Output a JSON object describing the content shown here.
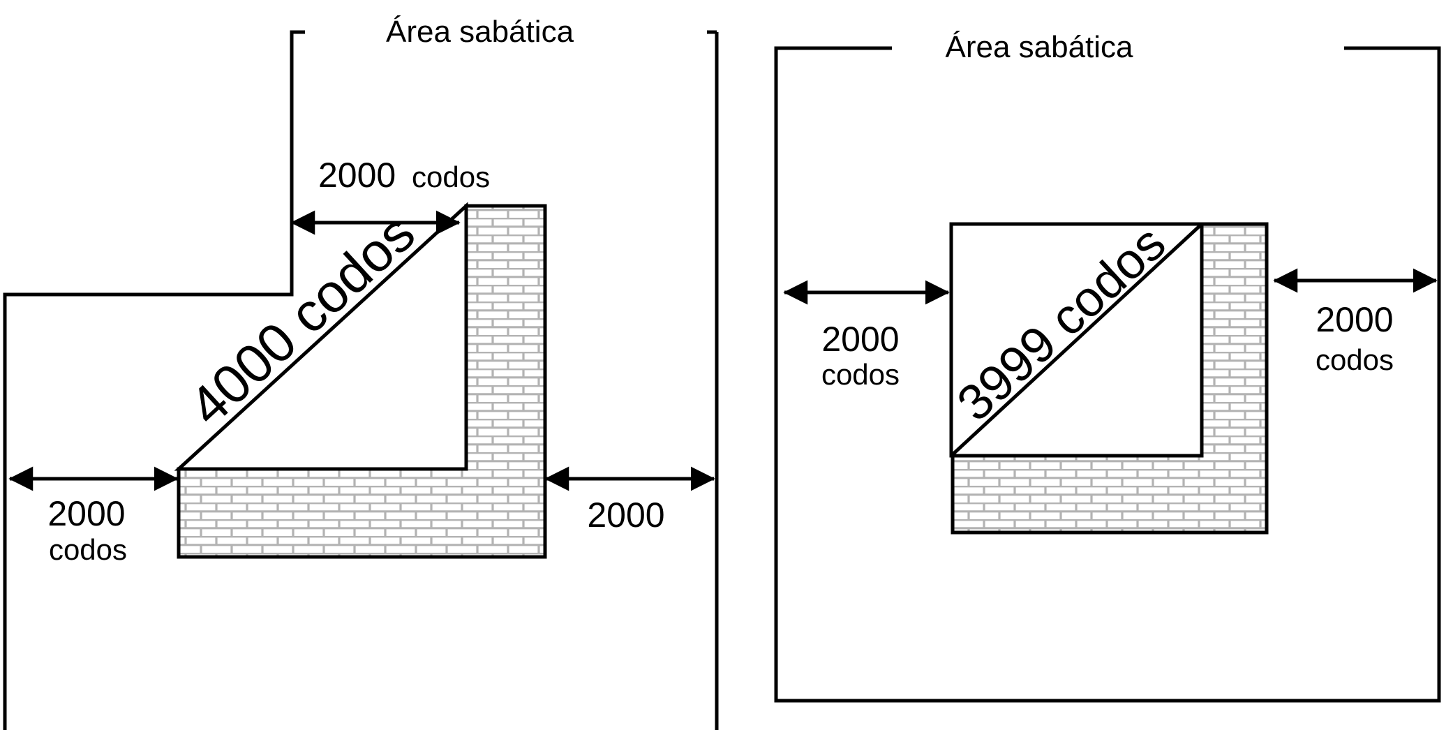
{
  "left": {
    "title": "Área sabática",
    "top_number": "2000",
    "top_unit": "codos",
    "diagonal": "4000 codos",
    "left_number": "2000",
    "left_unit": "codos",
    "right_label": "2000"
  },
  "right": {
    "title": "Área sabática",
    "diagonal": "3999 codos",
    "left_number": "2000",
    "left_unit": "codos",
    "right_number": "2000",
    "right_unit": "codos"
  },
  "colors": {
    "ink": "#000000",
    "brick_fill": "#ffffff",
    "brick_mortar": "#b3b3b3"
  }
}
